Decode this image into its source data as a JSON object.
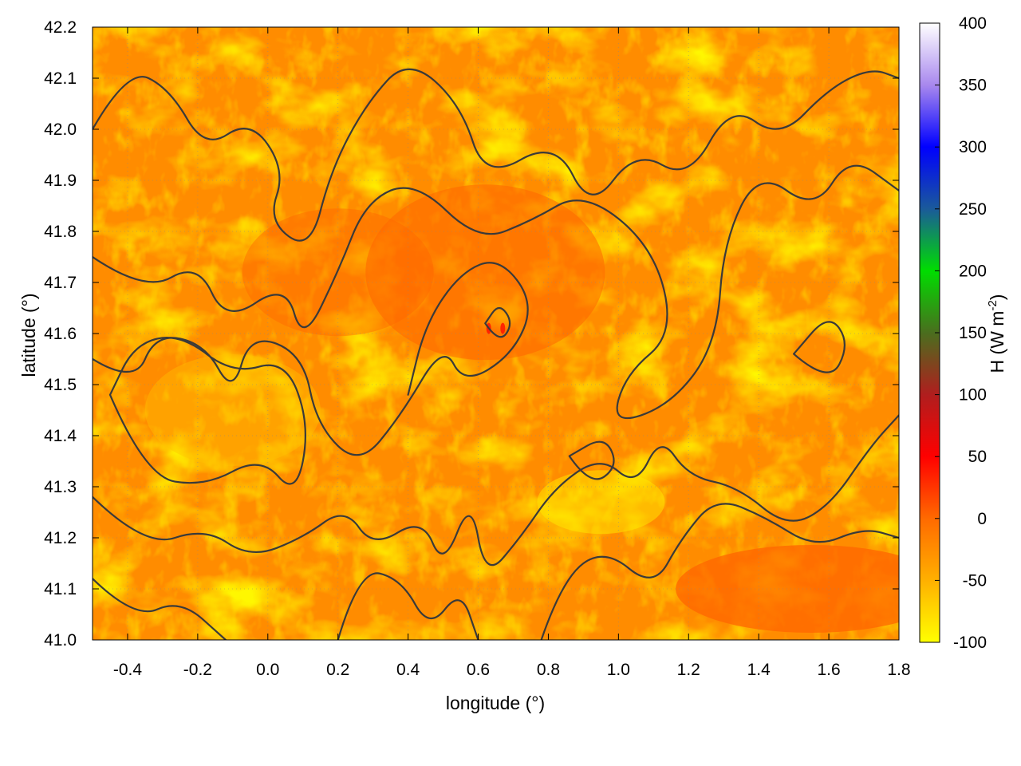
{
  "chart_data": {
    "type": "heatmap",
    "title": "",
    "xlabel": "longitude (°)",
    "ylabel": "latitude (°)",
    "colorbar_label_main": "H (W m",
    "colorbar_label_exp": "-2",
    "colorbar_label_close": ")",
    "xlim": [
      -0.5,
      1.8
    ],
    "ylim": [
      41.0,
      42.2
    ],
    "colorbar_range": [
      -100,
      400
    ],
    "x_ticks": [
      -0.4,
      -0.2,
      0.0,
      0.2,
      0.4,
      0.6,
      0.8,
      1.0,
      1.2,
      1.4,
      1.6,
      1.8
    ],
    "x_tick_labels": [
      "-0.4",
      "-0.2",
      "0.0",
      "0.2",
      "0.4",
      "0.6",
      "0.8",
      "1.0",
      "1.2",
      "1.4",
      "1.6",
      "1.8"
    ],
    "y_ticks": [
      41.0,
      41.1,
      41.2,
      41.3,
      41.4,
      41.5,
      41.6,
      41.7,
      41.8,
      41.9,
      42.0,
      42.1,
      42.2
    ],
    "y_tick_labels": [
      "41.0",
      "41.1",
      "41.2",
      "41.3",
      "41.4",
      "41.5",
      "41.6",
      "41.7",
      "41.8",
      "41.9",
      "42.0",
      "42.1",
      "42.2"
    ],
    "colorbar_ticks": [
      -100,
      -50,
      0,
      50,
      100,
      150,
      200,
      250,
      300,
      350,
      400
    ],
    "colorbar_tick_labels": [
      "-100",
      "-50",
      "0",
      "50",
      "100",
      "150",
      "200",
      "250",
      "300",
      "350",
      "400"
    ],
    "colorbar_stops": [
      {
        "value": -100,
        "color": "#ffff00"
      },
      {
        "value": -50,
        "color": "#ffb000"
      },
      {
        "value": 0,
        "color": "#ff6a00"
      },
      {
        "value": 50,
        "color": "#ff0000"
      },
      {
        "value": 100,
        "color": "#b01e1e"
      },
      {
        "value": 150,
        "color": "#4a6e1e"
      },
      {
        "value": 200,
        "color": "#00dd00"
      },
      {
        "value": 250,
        "color": "#1a5a9a"
      },
      {
        "value": 300,
        "color": "#0000ff"
      },
      {
        "value": 350,
        "color": "#a888ee"
      },
      {
        "value": 400,
        "color": "#ffffff"
      }
    ],
    "grid": true,
    "colormap_field_note_values": [
      -60,
      -10
    ],
    "contours": [
      [
        [
          -0.5,
          42.0
        ],
        [
          -0.4,
          42.12
        ],
        [
          -0.28,
          42.08
        ],
        [
          -0.18,
          41.96
        ],
        [
          -0.05,
          42.02
        ],
        [
          0.05,
          41.92
        ],
        [
          0.0,
          41.82
        ],
        [
          0.12,
          41.76
        ],
        [
          0.18,
          41.92
        ],
        [
          0.28,
          42.05
        ],
        [
          0.4,
          42.14
        ],
        [
          0.55,
          42.05
        ],
        [
          0.62,
          41.9
        ],
        [
          0.82,
          41.98
        ],
        [
          0.92,
          41.84
        ],
        [
          1.05,
          41.96
        ],
        [
          1.2,
          41.9
        ],
        [
          1.32,
          42.05
        ],
        [
          1.46,
          41.98
        ],
        [
          1.6,
          42.08
        ],
        [
          1.72,
          42.12
        ],
        [
          1.8,
          42.1
        ]
      ],
      [
        [
          -0.5,
          41.75
        ],
        [
          -0.35,
          41.68
        ],
        [
          -0.2,
          41.74
        ],
        [
          -0.12,
          41.62
        ],
        [
          0.05,
          41.7
        ],
        [
          0.1,
          41.58
        ],
        [
          0.2,
          41.72
        ],
        [
          0.28,
          41.86
        ],
        [
          0.42,
          41.9
        ],
        [
          0.6,
          41.78
        ],
        [
          0.75,
          41.82
        ],
        [
          0.9,
          41.88
        ],
        [
          1.1,
          41.77
        ],
        [
          1.16,
          41.6
        ],
        [
          1.02,
          41.52
        ],
        [
          0.98,
          41.42
        ],
        [
          1.15,
          41.46
        ],
        [
          1.28,
          41.58
        ],
        [
          1.3,
          41.78
        ],
        [
          1.4,
          41.92
        ],
        [
          1.56,
          41.84
        ],
        [
          1.66,
          41.95
        ],
        [
          1.8,
          41.88
        ]
      ],
      [
        [
          -0.5,
          41.55
        ],
        [
          -0.38,
          41.5
        ],
        [
          -0.32,
          41.6
        ],
        [
          -0.18,
          41.58
        ],
        [
          -0.1,
          41.48
        ],
        [
          -0.05,
          41.6
        ],
        [
          0.1,
          41.56
        ],
        [
          0.14,
          41.42
        ],
        [
          0.26,
          41.34
        ],
        [
          0.38,
          41.44
        ],
        [
          0.5,
          41.58
        ],
        [
          0.56,
          41.5
        ],
        [
          0.7,
          41.56
        ],
        [
          0.76,
          41.66
        ],
        [
          0.66,
          41.75
        ],
        [
          0.55,
          41.72
        ],
        [
          0.45,
          41.62
        ],
        [
          0.4,
          41.48
        ]
      ],
      [
        [
          -0.45,
          41.48
        ],
        [
          -0.35,
          41.32
        ],
        [
          -0.18,
          41.3
        ],
        [
          -0.02,
          41.36
        ],
        [
          0.08,
          41.28
        ],
        [
          0.12,
          41.42
        ],
        [
          0.05,
          41.55
        ],
        [
          -0.1,
          41.52
        ],
        [
          -0.25,
          41.6
        ],
        [
          -0.38,
          41.58
        ],
        [
          -0.45,
          41.48
        ]
      ],
      [
        [
          -0.5,
          41.28
        ],
        [
          -0.35,
          41.18
        ],
        [
          -0.18,
          41.22
        ],
        [
          -0.05,
          41.16
        ],
        [
          0.1,
          41.2
        ],
        [
          0.22,
          41.26
        ],
        [
          0.3,
          41.18
        ],
        [
          0.44,
          41.24
        ],
        [
          0.5,
          41.14
        ],
        [
          0.58,
          41.28
        ],
        [
          0.62,
          41.12
        ],
        [
          0.72,
          41.2
        ],
        [
          0.82,
          41.3
        ],
        [
          0.95,
          41.36
        ],
        [
          1.05,
          41.3
        ],
        [
          1.12,
          41.4
        ],
        [
          1.2,
          41.32
        ],
        [
          1.34,
          41.3
        ],
        [
          1.48,
          41.22
        ],
        [
          1.6,
          41.26
        ],
        [
          1.72,
          41.38
        ],
        [
          1.8,
          41.44
        ]
      ],
      [
        [
          -0.5,
          41.12
        ],
        [
          -0.38,
          41.04
        ],
        [
          -0.25,
          41.08
        ],
        [
          -0.12,
          41.0
        ]
      ],
      [
        [
          0.2,
          41.0
        ],
        [
          0.26,
          41.14
        ],
        [
          0.38,
          41.12
        ],
        [
          0.46,
          41.02
        ],
        [
          0.55,
          41.1
        ],
        [
          0.6,
          41.0
        ]
      ],
      [
        [
          0.78,
          41.0
        ],
        [
          0.84,
          41.12
        ],
        [
          0.96,
          41.18
        ],
        [
          1.1,
          41.1
        ],
        [
          1.18,
          41.2
        ],
        [
          1.28,
          41.28
        ],
        [
          1.42,
          41.24
        ],
        [
          1.56,
          41.18
        ],
        [
          1.7,
          41.22
        ],
        [
          1.8,
          41.2
        ]
      ],
      [
        [
          0.62,
          41.62
        ],
        [
          0.66,
          41.58
        ],
        [
          0.7,
          41.62
        ],
        [
          0.66,
          41.66
        ],
        [
          0.62,
          41.62
        ]
      ],
      [
        [
          0.86,
          41.36
        ],
        [
          0.92,
          41.3
        ],
        [
          1.0,
          41.34
        ],
        [
          0.96,
          41.4
        ],
        [
          0.86,
          41.36
        ]
      ],
      [
        [
          1.5,
          41.56
        ],
        [
          1.6,
          41.5
        ],
        [
          1.66,
          41.58
        ],
        [
          1.6,
          41.64
        ],
        [
          1.5,
          41.56
        ]
      ]
    ]
  }
}
